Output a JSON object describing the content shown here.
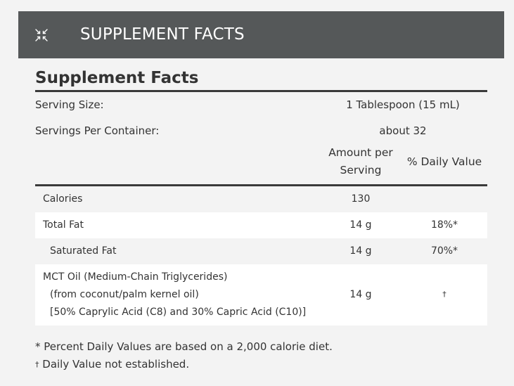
{
  "header": {
    "title": "SUPPLEMENT FACTS",
    "icon": "collapse-arrows-icon",
    "background": "#555859"
  },
  "facts": {
    "title": "Supplement Facts",
    "serving_size_label": "Serving Size:",
    "serving_size_value": "1 Tablespoon (15 mL)",
    "servings_label": "Servings Per Container:",
    "servings_value": "about 32",
    "col_amount_line1": "Amount per",
    "col_amount_line2": "Serving",
    "col_daily": "% Daily Value",
    "rows": [
      {
        "name": "Calories",
        "amount": "130",
        "daily": ""
      },
      {
        "name": "Total Fat",
        "amount": "14 g",
        "daily": "18%*"
      },
      {
        "name": "Saturated Fat",
        "amount": "14 g",
        "daily": "70%*"
      },
      {
        "name": "MCT Oil (Medium-Chain Triglycerides)",
        "name_line2": "(from coconut/palm kernel oil)",
        "name_line3": "[50% Caprylic Acid (C8) and 30% Capric Acid (C10)]",
        "amount": "14 g",
        "daily": "†"
      }
    ]
  },
  "footnotes": {
    "percent_note": "* Percent Daily Values are based on a 2,000 calorie diet.",
    "dagger_symbol": "†",
    "dagger_note": " Daily Value not established."
  }
}
